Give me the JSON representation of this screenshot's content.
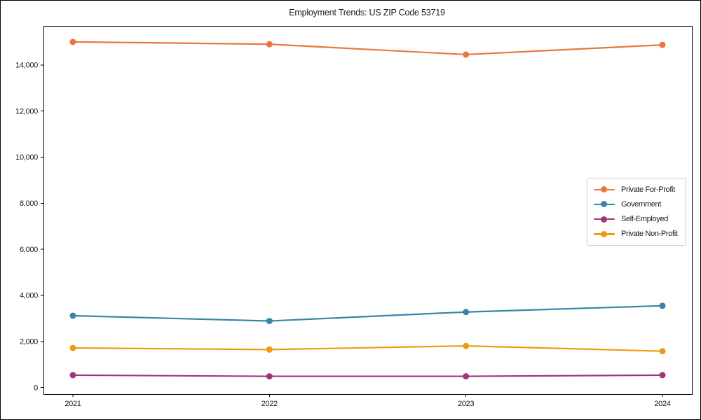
{
  "title": "Employment Trends: US ZIP Code 53719",
  "chart_data": {
    "type": "line",
    "title": "Employment Trends: US ZIP Code 53719",
    "x": [
      2021,
      2022,
      2023,
      2024
    ],
    "xtick_labels": [
      "2021",
      "2022",
      "2023",
      "2024"
    ],
    "yticks": [
      0,
      2000,
      4000,
      6000,
      8000,
      10000,
      12000,
      14000
    ],
    "ytick_labels": [
      "0",
      "2,000",
      "4,000",
      "6,000",
      "8,000",
      "10,000",
      "12,000",
      "14,000"
    ],
    "ylim": [
      -282,
      15694
    ],
    "grid": false,
    "legend_position": "center right",
    "marker": "circle",
    "series": [
      {
        "name": "Private For-Profit",
        "color": "#e87840",
        "values": [
          15000,
          14900,
          14450,
          14870
        ]
      },
      {
        "name": "Government",
        "color": "#3786a6",
        "values": [
          3120,
          2890,
          3280,
          3550
        ]
      },
      {
        "name": "Self-Employed",
        "color": "#a1357b",
        "values": [
          540,
          490,
          490,
          540
        ]
      },
      {
        "name": "Private Non-Profit",
        "color": "#ec9c10",
        "values": [
          1720,
          1650,
          1810,
          1580
        ]
      }
    ]
  }
}
